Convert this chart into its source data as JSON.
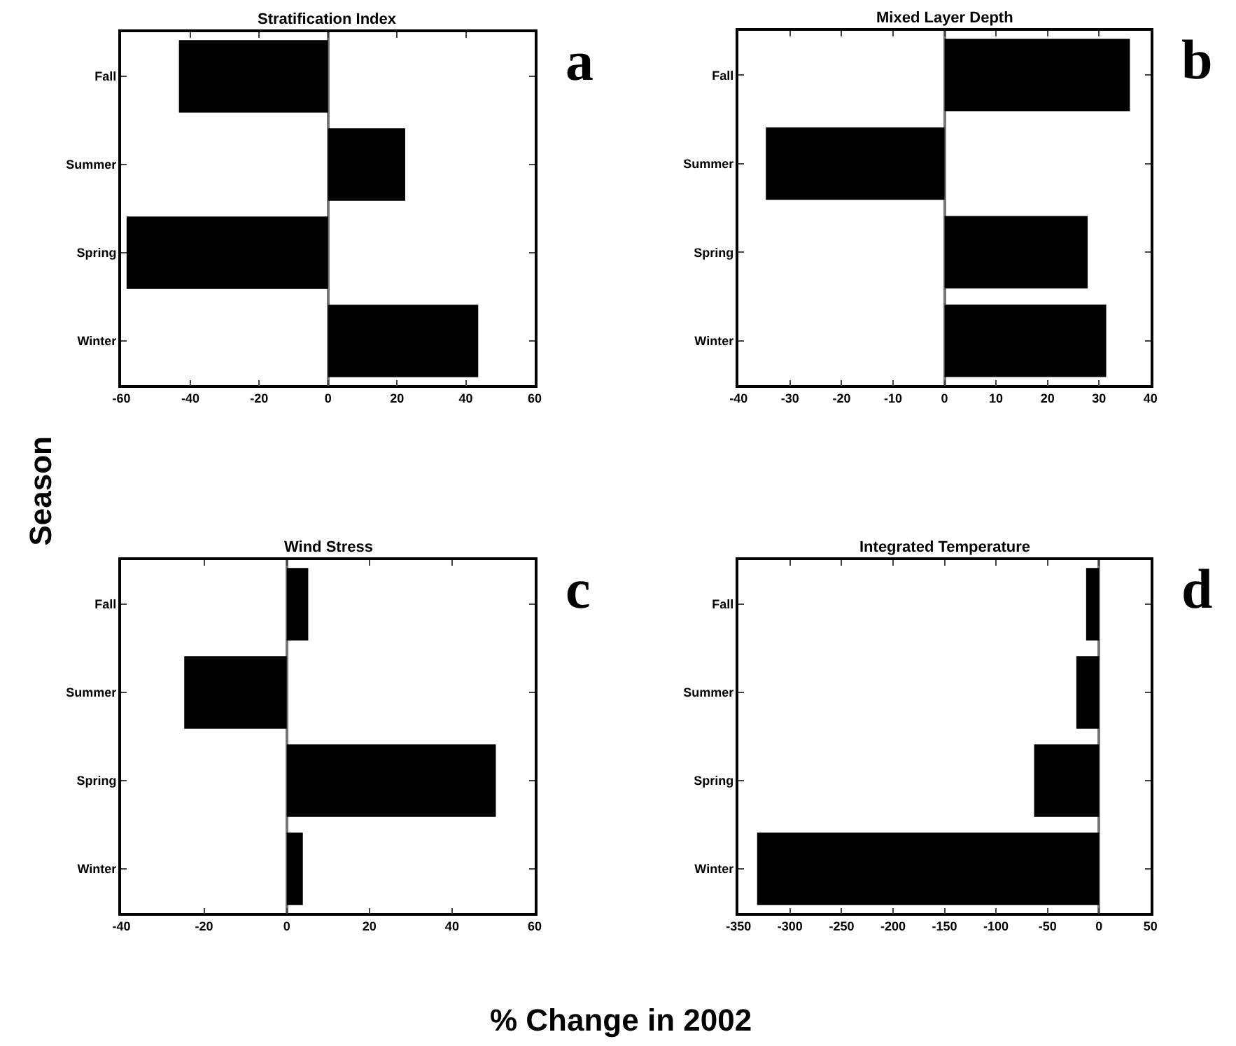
{
  "chart_data": [
    {
      "type": "bar",
      "orientation": "horizontal",
      "title": "Stratification Index",
      "ylabel": "Season",
      "annotations": [
        "a"
      ],
      "categories": [
        "Fall",
        "Summer",
        "Spring",
        "Winter"
      ],
      "values": [
        -43.3,
        22.4,
        -58.5,
        43.6
      ],
      "color": "#000000",
      "xlim": [
        -60,
        60
      ],
      "xticks": [
        -60,
        -40,
        -20,
        0,
        20,
        40,
        60
      ]
    },
    {
      "type": "bar",
      "orientation": "horizontal",
      "title": "Mixed Layer Depth",
      "annotations": [
        "b"
      ],
      "categories": [
        "Fall",
        "Summer",
        "Spring",
        "Winter"
      ],
      "values": [
        36,
        -34.7,
        27.8,
        31.4
      ],
      "color": "#000000",
      "xlim": [
        -40,
        40
      ],
      "xticks": [
        -40,
        -30,
        -20,
        -10,
        0,
        10,
        20,
        30,
        40
      ]
    },
    {
      "type": "bar",
      "orientation": "horizontal",
      "title": "Wind Stress",
      "annotations": [
        "c"
      ],
      "categories": [
        "Fall",
        "Summer",
        "Spring",
        "Winter"
      ],
      "values": [
        5.2,
        -24.8,
        50.6,
        3.9
      ],
      "color": "#000000",
      "xlim": [
        -40,
        60
      ],
      "xticks": [
        -40,
        -20,
        0,
        20,
        40,
        60
      ]
    },
    {
      "type": "bar",
      "orientation": "horizontal",
      "title": "Integrated Temperature",
      "xlabel": "% Change in 2002",
      "annotations": [
        "d"
      ],
      "categories": [
        "Fall",
        "Summer",
        "Spring",
        "Winter"
      ],
      "values": [
        -12.5,
        -22,
        -63,
        -332
      ],
      "color": "#000000",
      "xlim": [
        -350,
        50
      ],
      "xticks": [
        -350,
        -300,
        -250,
        -200,
        -150,
        -100,
        -50,
        0,
        50
      ]
    }
  ]
}
